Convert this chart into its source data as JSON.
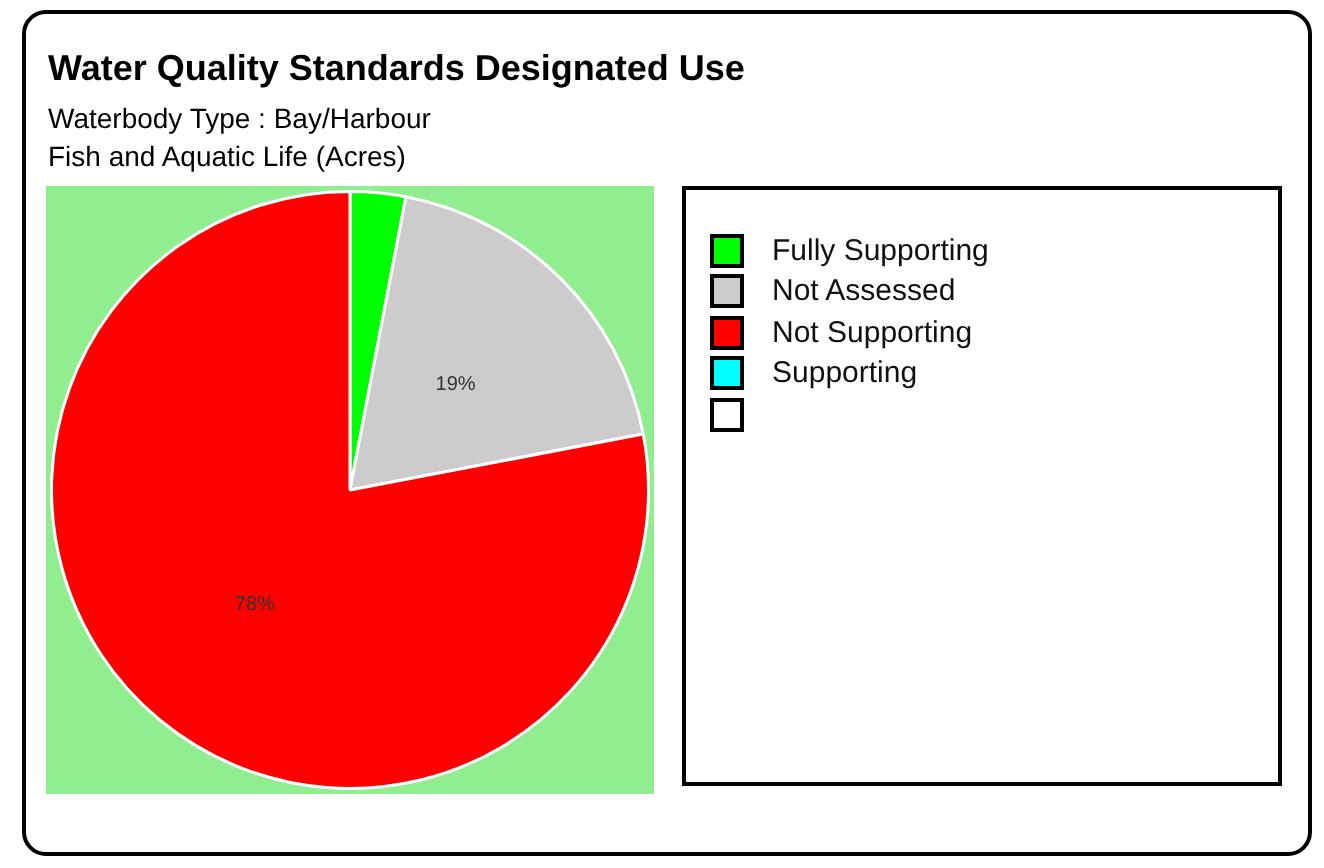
{
  "chart_data": {
    "type": "pie",
    "title": "Water Quality Standards Designated Use",
    "subtitle": "Waterbody Type : Bay/Harbour\nFish and Aquatic Life (Acres)",
    "categories": [
      "Fully Supporting",
      "Not Assessed",
      "Not Supporting",
      "Supporting",
      null
    ],
    "values": [
      3,
      19,
      78,
      0,
      0
    ],
    "colors": [
      "#00ff00",
      "#cccccc",
      "#ff0000",
      "#00ffff",
      "#ffffff"
    ],
    "value_labels": [
      null,
      "19%",
      "78%",
      null,
      null
    ],
    "legend": "right"
  }
}
